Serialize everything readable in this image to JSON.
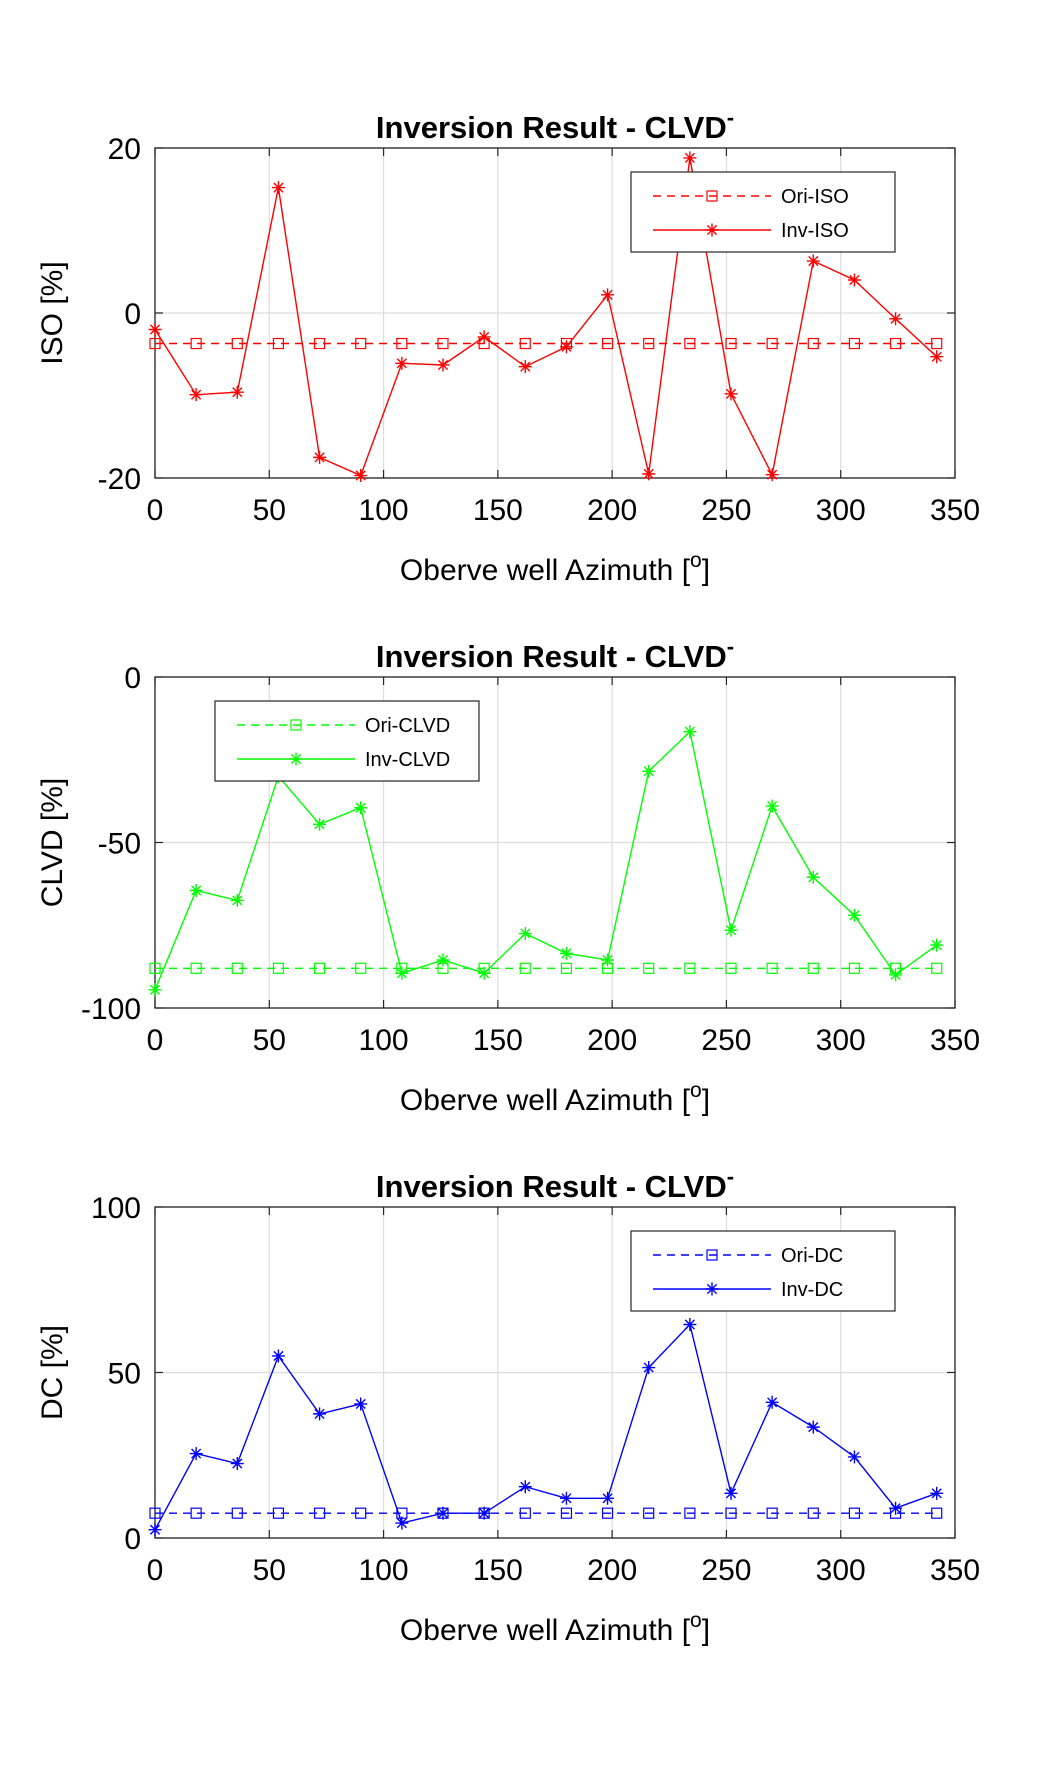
{
  "chart_data": [
    {
      "type": "line",
      "title": "Inversion Result - CLVD",
      "title_superscript": "-",
      "xlabel": "Oberve well Azimuth [",
      "xlabel_superscript": "o",
      "xlabel_suffix": "]",
      "ylabel": "ISO [%]",
      "xlim": [
        0,
        350
      ],
      "ylim": [
        -20,
        20
      ],
      "xticks": [
        "0",
        "50",
        "100",
        "150",
        "200",
        "250",
        "300",
        "350"
      ],
      "yticks": [
        "-20",
        "0",
        "20"
      ],
      "grid": true,
      "legend_position": "top-right",
      "color": "#ff0000",
      "x": [
        0,
        18,
        36,
        54,
        72,
        90,
        108,
        126,
        144,
        162,
        180,
        198,
        216,
        234,
        252,
        270,
        288,
        306,
        324,
        342
      ],
      "series": [
        {
          "name": "Ori-ISO",
          "style": "dashed",
          "marker": "square",
          "values": [
            -3.7,
            -3.7,
            -3.7,
            -3.7,
            -3.7,
            -3.7,
            -3.7,
            -3.7,
            -3.7,
            -3.7,
            -3.7,
            -3.7,
            -3.7,
            -3.7,
            -3.7,
            -3.7,
            -3.7,
            -3.7,
            -3.7,
            -3.7
          ]
        },
        {
          "name": "Inv-ISO",
          "style": "solid",
          "marker": "asterisk",
          "values": [
            -2.0,
            -9.9,
            -9.6,
            15.2,
            -17.5,
            -19.7,
            -6.1,
            -6.3,
            -2.9,
            -6.5,
            -4.1,
            2.2,
            -19.5,
            18.8,
            -9.8,
            -19.6,
            6.3,
            4.0,
            -0.7,
            -5.3
          ]
        }
      ]
    },
    {
      "type": "line",
      "title": "Inversion Result - CLVD",
      "title_superscript": "-",
      "xlabel": "Oberve well Azimuth [",
      "xlabel_superscript": "o",
      "xlabel_suffix": "]",
      "ylabel": "CLVD [%]",
      "xlim": [
        0,
        350
      ],
      "ylim": [
        -100,
        0
      ],
      "xticks": [
        "0",
        "50",
        "100",
        "150",
        "200",
        "250",
        "300",
        "350"
      ],
      "yticks": [
        "-100",
        "-50",
        "0"
      ],
      "grid": true,
      "legend_position": "top-left",
      "color": "#00ff00",
      "x": [
        0,
        18,
        36,
        54,
        72,
        90,
        108,
        126,
        144,
        162,
        180,
        198,
        216,
        234,
        252,
        270,
        288,
        306,
        324,
        342
      ],
      "series": [
        {
          "name": "Ori-CLVD",
          "style": "dashed",
          "marker": "square",
          "values": [
            -88,
            -88,
            -88,
            -88,
            -88,
            -88,
            -88,
            -88,
            -88,
            -88,
            -88,
            -88,
            -88,
            -88,
            -88,
            -88,
            -88,
            -88,
            -88,
            -88
          ]
        },
        {
          "name": "Inv-CLVD",
          "style": "solid",
          "marker": "asterisk",
          "values": [
            -94.5,
            -64.5,
            -67.5,
            -30,
            -44.5,
            -39.5,
            -89.5,
            -85.5,
            -89.5,
            -77.5,
            -83.5,
            -85.5,
            -28.5,
            -16.5,
            -76.5,
            -39,
            -60.5,
            -72,
            -90,
            -81
          ]
        }
      ]
    },
    {
      "type": "line",
      "title": "Inversion Result - CLVD",
      "title_superscript": "-",
      "xlabel": "Oberve well Azimuth [",
      "xlabel_superscript": "o",
      "xlabel_suffix": "]",
      "ylabel": "DC [%]",
      "xlim": [
        0,
        350
      ],
      "ylim": [
        0,
        100
      ],
      "xticks": [
        "0",
        "50",
        "100",
        "150",
        "200",
        "250",
        "300",
        "350"
      ],
      "yticks": [
        "0",
        "50",
        "100"
      ],
      "grid": true,
      "legend_position": "top-right",
      "color": "#0000ff",
      "x": [
        0,
        18,
        36,
        54,
        72,
        90,
        108,
        126,
        144,
        162,
        180,
        198,
        216,
        234,
        252,
        270,
        288,
        306,
        324,
        342
      ],
      "series": [
        {
          "name": "Ori-DC",
          "style": "dashed",
          "marker": "square",
          "values": [
            7.5,
            7.5,
            7.5,
            7.5,
            7.5,
            7.5,
            7.5,
            7.5,
            7.5,
            7.5,
            7.5,
            7.5,
            7.5,
            7.5,
            7.5,
            7.5,
            7.5,
            7.5,
            7.5,
            7.5
          ]
        },
        {
          "name": "Inv-DC",
          "style": "solid",
          "marker": "asterisk",
          "values": [
            2.5,
            25.5,
            22.5,
            55,
            37.5,
            40.5,
            4.5,
            7.5,
            7.5,
            15.5,
            12,
            12,
            51.5,
            64.5,
            13.5,
            41,
            33.5,
            24.5,
            9,
            13.5
          ]
        }
      ]
    }
  ]
}
